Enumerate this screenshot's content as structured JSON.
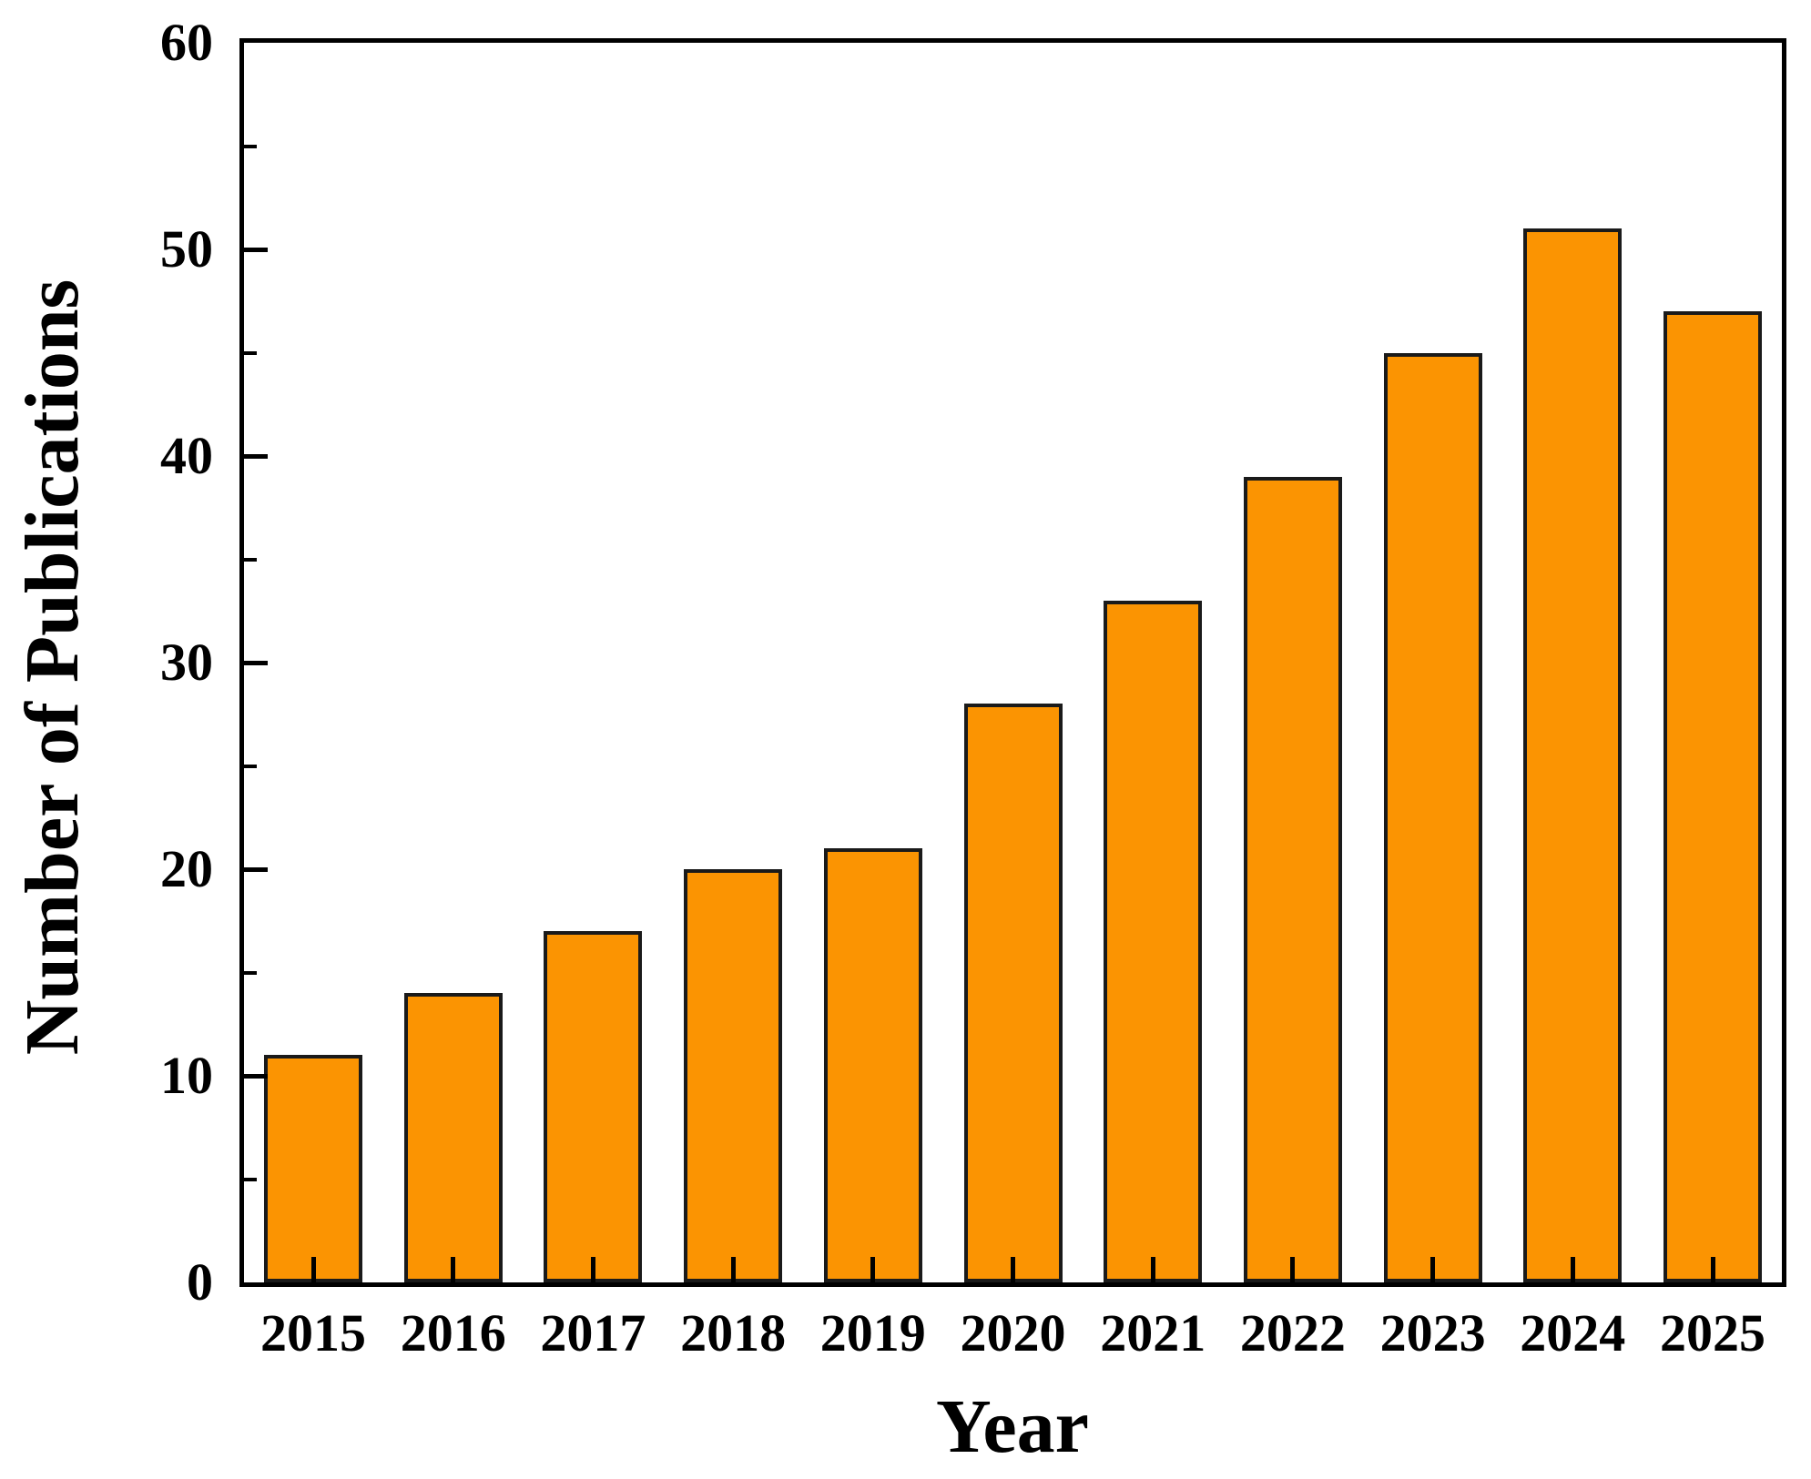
{
  "chart_data": {
    "type": "bar",
    "title": "",
    "categories": [
      "2015",
      "2016",
      "2017",
      "2018",
      "2019",
      "2020",
      "2021",
      "2022",
      "2023",
      "2024",
      "2025"
    ],
    "values": [
      11,
      14,
      17,
      20,
      21,
      28,
      33,
      39,
      45,
      51,
      47
    ],
    "xlabel": "Year",
    "ylabel": "Number of Publications",
    "ylim": [
      0,
      60
    ],
    "y_major_step": 10,
    "y_minor_step": 5,
    "y_major_tick_labels": [
      "0",
      "10",
      "20",
      "30",
      "40",
      "50",
      "60"
    ],
    "grid": "off",
    "legend": "none",
    "tick_direction": "in",
    "colors": {
      "bar_fill": "#FB9402",
      "bar_outline": "#1A1A1A",
      "axis": "#000000",
      "text": "#000000",
      "background": "#FFFFFF"
    }
  }
}
